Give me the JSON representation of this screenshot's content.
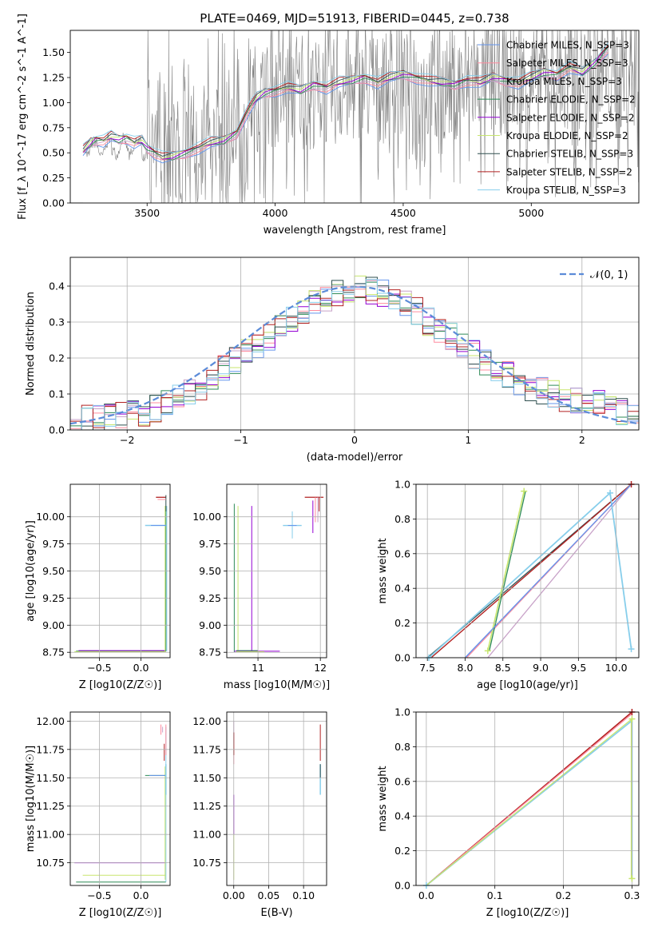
{
  "figure": {
    "title": "PLATE=0469, MJD=51913, FIBERID=0445, z=0.738"
  },
  "chart_data": [
    {
      "id": "spectrum",
      "type": "line",
      "xlabel": "wavelength [Angstrom, rest frame]",
      "ylabel": "Flux [f_λ 10^-17 erg cm^-2 s^-1 A^-1]",
      "xlim": [
        3200,
        5420
      ],
      "ylim": [
        0,
        1.72
      ],
      "xticks": [
        3500,
        4000,
        4500,
        5000
      ],
      "yticks": [
        0.0,
        0.25,
        0.5,
        0.75,
        1.0,
        1.25,
        1.5
      ],
      "legend_position": "top-right",
      "data_color": "#808080",
      "series": [
        {
          "name": "Chabrier MILES, N_SSP=3",
          "color": "#6495ed"
        },
        {
          "name": "Salpeter MILES, N_SSP=3",
          "color": "#ff8c9f"
        },
        {
          "name": "Kroupa MILES, N_SSP=3",
          "color": "#c8a2c8"
        },
        {
          "name": "Chabrier ELODIE, N_SSP=2",
          "color": "#2e8b57"
        },
        {
          "name": "Salpeter ELODIE, N_SSP=2",
          "color": "#9400d3"
        },
        {
          "name": "Kroupa ELODIE, N_SSP=2",
          "color": "#c8e66e"
        },
        {
          "name": "Chabrier STELIB, N_SSP=3",
          "color": "#2f4f4f"
        },
        {
          "name": "Salpeter STELIB, N_SSP=2",
          "color": "#b22222"
        },
        {
          "name": "Kroupa STELIB, N_SSP=3",
          "color": "#87ceeb"
        }
      ],
      "model_x": [
        3250,
        3280,
        3300,
        3330,
        3360,
        3390,
        3420,
        3450,
        3480,
        3500,
        3530,
        3560,
        3600,
        3650,
        3700,
        3750,
        3800,
        3850,
        3900,
        3930,
        3960,
        4000,
        4050,
        4100,
        4150,
        4200,
        4250,
        4300,
        4350,
        4400,
        4450,
        4500,
        4550,
        4600,
        4650,
        4700,
        4750,
        4800,
        4850,
        4900,
        4950,
        5000,
        5050,
        5100,
        5150,
        5200,
        5250,
        5300
      ],
      "model_y": [
        0.52,
        0.6,
        0.63,
        0.62,
        0.66,
        0.63,
        0.65,
        0.6,
        0.62,
        0.55,
        0.5,
        0.45,
        0.46,
        0.5,
        0.55,
        0.6,
        0.62,
        0.7,
        0.95,
        1.05,
        1.1,
        1.12,
        1.15,
        1.12,
        1.18,
        1.15,
        1.2,
        1.22,
        1.25,
        1.2,
        1.25,
        1.28,
        1.25,
        1.22,
        1.2,
        1.18,
        1.22,
        1.2,
        1.25,
        1.22,
        1.2,
        1.25,
        1.3,
        1.28,
        1.35,
        1.3,
        1.4,
        1.55
      ]
    },
    {
      "id": "residuals",
      "type": "line",
      "xlabel": "(data-model)/error",
      "ylabel": "Normed distribution",
      "xlim": [
        -2.5,
        2.5
      ],
      "ylim": [
        0,
        0.48
      ],
      "xticks": [
        -2,
        -1,
        0,
        1,
        2
      ],
      "yticks": [
        0.0,
        0.1,
        0.2,
        0.3,
        0.4
      ],
      "legend": "𝒩(0, 1)",
      "legend_position": "top-right",
      "curve_color": "#5b8bd8",
      "bin_edges_start": -2.5,
      "bin_width": 0.1,
      "hist": [
        0.02,
        0.03,
        0.03,
        0.04,
        0.04,
        0.05,
        0.05,
        0.06,
        0.08,
        0.09,
        0.11,
        0.12,
        0.14,
        0.17,
        0.19,
        0.22,
        0.24,
        0.26,
        0.29,
        0.31,
        0.33,
        0.36,
        0.37,
        0.38,
        0.39,
        0.4,
        0.39,
        0.38,
        0.37,
        0.35,
        0.33,
        0.3,
        0.28,
        0.26,
        0.23,
        0.21,
        0.19,
        0.17,
        0.15,
        0.13,
        0.12,
        0.11,
        0.1,
        0.09,
        0.08,
        0.07,
        0.07,
        0.06,
        0.05,
        0.04
      ]
    },
    {
      "id": "age-vs-z",
      "type": "scatter",
      "xlabel": "Z [log10(Z/Z☉)]",
      "ylabel": "age [log10(age/yr)]",
      "xlim": [
        -0.85,
        0.35
      ],
      "ylim": [
        8.7,
        10.3
      ],
      "xticks": [
        -0.5,
        0.0
      ],
      "yticks": [
        8.75,
        9.0,
        9.25,
        9.5,
        9.75,
        10.0
      ]
    },
    {
      "id": "age-vs-mass",
      "type": "scatter",
      "xlabel": "mass [log10(M/M☉)]",
      "ylabel": "",
      "xlim": [
        10.5,
        12.1
      ],
      "ylim": [
        8.7,
        10.3
      ],
      "xticks": [
        11,
        12
      ],
      "yticks": [
        8.75,
        9.0,
        9.25,
        9.5,
        9.75,
        10.0
      ]
    },
    {
      "id": "massweight-vs-age",
      "type": "line",
      "xlabel": "age [log10(age/yr)]",
      "ylabel": "mass weight",
      "xlim": [
        7.35,
        10.3
      ],
      "ylim": [
        0,
        1.0
      ],
      "xticks": [
        7.5,
        8.0,
        8.5,
        9.0,
        9.5,
        10.0
      ],
      "yticks": [
        0.0,
        0.2,
        0.4,
        0.6,
        0.8,
        1.0
      ]
    },
    {
      "id": "mass-vs-z",
      "type": "scatter",
      "xlabel": "Z [log10(Z/Z☉)]",
      "ylabel": "mass [log10(M/M☉)]",
      "xlim": [
        -0.85,
        0.35
      ],
      "ylim": [
        10.55,
        12.08
      ],
      "xticks": [
        -0.5,
        0.0
      ],
      "yticks": [
        10.75,
        11.0,
        11.25,
        11.5,
        11.75,
        12.0
      ]
    },
    {
      "id": "mass-vs-ebv",
      "type": "scatter",
      "xlabel": "E(B-V)",
      "ylabel": "",
      "xlim": [
        -0.01,
        0.133
      ],
      "ylim": [
        10.55,
        12.08
      ],
      "xticks": [
        0.0,
        0.05,
        0.1
      ],
      "yticks": [
        10.75,
        11.0,
        11.25,
        11.5,
        11.75,
        12.0
      ]
    },
    {
      "id": "massweight-vs-z",
      "type": "line",
      "xlabel": "Z [log10(Z/Z☉)]",
      "ylabel": "mass weight",
      "xlim": [
        -0.015,
        0.31
      ],
      "ylim": [
        0,
        1.0
      ],
      "xticks": [
        0.0,
        0.1,
        0.2,
        0.3
      ],
      "yticks": [
        0.0,
        0.2,
        0.4,
        0.6,
        0.8,
        1.0
      ]
    }
  ]
}
